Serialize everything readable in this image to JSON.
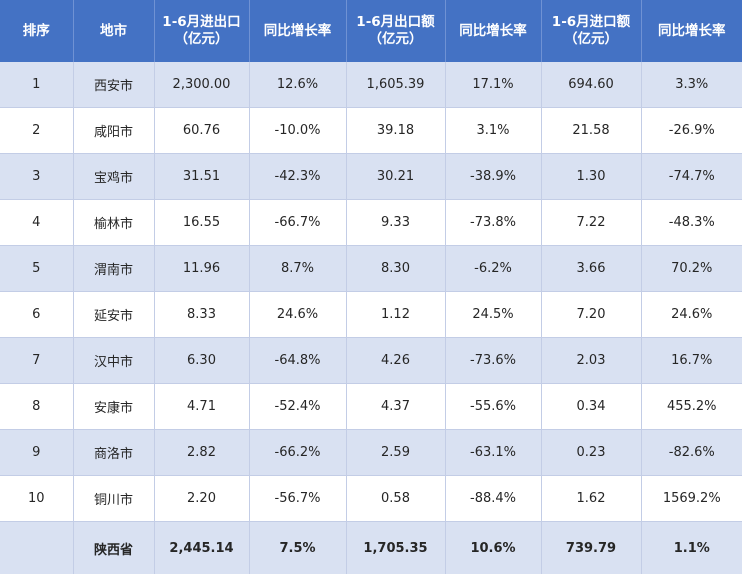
{
  "table": {
    "headers": [
      [
        "排序"
      ],
      [
        "地市"
      ],
      [
        "1-6月进出口",
        "（亿元）"
      ],
      [
        "同比增长率"
      ],
      [
        "1-6月出口额",
        "（亿元）"
      ],
      [
        "同比增长率"
      ],
      [
        "1-6月进口额",
        "（亿元）"
      ],
      [
        "同比增长率"
      ]
    ],
    "rows": [
      [
        "1",
        "西安市",
        "2,300.00",
        "12.6%",
        "1,605.39",
        "17.1%",
        "694.60",
        "3.3%"
      ],
      [
        "2",
        "咸阳市",
        "60.76",
        "-10.0%",
        "39.18",
        "3.1%",
        "21.58",
        "-26.9%"
      ],
      [
        "3",
        "宝鸡市",
        "31.51",
        "-42.3%",
        "30.21",
        "-38.9%",
        "1.30",
        "-74.7%"
      ],
      [
        "4",
        "榆林市",
        "16.55",
        "-66.7%",
        "9.33",
        "-73.8%",
        "7.22",
        "-48.3%"
      ],
      [
        "5",
        "渭南市",
        "11.96",
        "8.7%",
        "8.30",
        "-6.2%",
        "3.66",
        "70.2%"
      ],
      [
        "6",
        "延安市",
        "8.33",
        "24.6%",
        "1.12",
        "24.5%",
        "7.20",
        "24.6%"
      ],
      [
        "7",
        "汉中市",
        "6.30",
        "-64.8%",
        "4.26",
        "-73.6%",
        "2.03",
        "16.7%"
      ],
      [
        "8",
        "安康市",
        "4.71",
        "-52.4%",
        "4.37",
        "-55.6%",
        "0.34",
        "455.2%"
      ],
      [
        "9",
        "商洛市",
        "2.82",
        "-66.2%",
        "2.59",
        "-63.1%",
        "0.23",
        "-82.6%"
      ],
      [
        "10",
        "铜川市",
        "2.20",
        "-56.7%",
        "0.58",
        "-88.4%",
        "1.62",
        "1569.2%"
      ]
    ],
    "total": [
      "",
      "陕西省",
      "2,445.14",
      "7.5%",
      "1,705.35",
      "10.6%",
      "739.79",
      "1.1%"
    ]
  }
}
